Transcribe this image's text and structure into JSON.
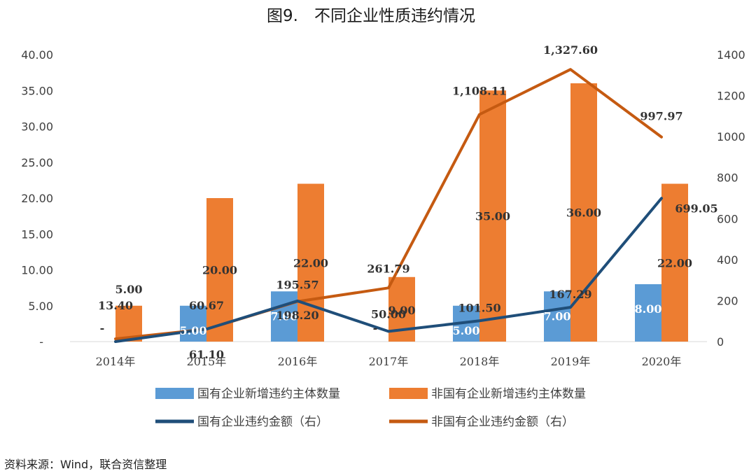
{
  "title": "图9.　不同企业性质违约情况",
  "source": "资料来源：Wind，联合资信整理",
  "colors": {
    "soe_bar": "#5b9bd5",
    "nonsoe_bar": "#ed7d31",
    "soe_line": "#1f4e79",
    "nonsoe_line": "#c55a11"
  },
  "chart_data": {
    "type": "bar",
    "categories": [
      "2014年",
      "2015年",
      "2016年",
      "2017年",
      "2018年",
      "2019年",
      "2020年"
    ],
    "y_left_ticks": [
      "-",
      "5.00",
      "10.00",
      "15.00",
      "20.00",
      "25.00",
      "30.00",
      "35.00",
      "40.00"
    ],
    "y_right_ticks": [
      "0",
      "200",
      "400",
      "600",
      "800",
      "1000",
      "1200",
      "1400"
    ],
    "ylim_left": [
      0,
      40
    ],
    "ylim_right": [
      0,
      1400
    ],
    "legend_position": "bottom",
    "grid": false,
    "series": [
      {
        "name": "国有企业新增违约主体数量",
        "type": "bar",
        "axis": "left",
        "values": [
          0,
          5,
          7,
          0,
          5,
          7,
          8
        ],
        "labels": [
          "-",
          "5.00",
          "7.00",
          "-",
          "5.00",
          "7.00",
          "8.00"
        ]
      },
      {
        "name": "非国有企业新增违约主体数量",
        "type": "bar",
        "axis": "left",
        "values": [
          5,
          20,
          22,
          9,
          35,
          36,
          22
        ],
        "labels": [
          "5.00",
          "20.00",
          "22.00",
          "9.00",
          "35.00",
          "36.00",
          "22.00"
        ]
      },
      {
        "name": "国有企业违约金额（右）",
        "type": "line",
        "axis": "right",
        "values": [
          0,
          61.1,
          198.2,
          50.0,
          101.5,
          167.29,
          699.05
        ],
        "labels": [
          "",
          "61.10",
          "198.20",
          "50.00",
          "101.50",
          "167.29",
          "699.05"
        ]
      },
      {
        "name": "非国有企业违约金额（右）",
        "type": "line",
        "axis": "right",
        "values": [
          13.4,
          60.67,
          195.57,
          261.79,
          1108.11,
          1327.6,
          997.97
        ],
        "labels": [
          "13.40",
          "60.67",
          "195.57",
          "261.79",
          "1,108.11",
          "1,327.60",
          "997.97"
        ]
      }
    ]
  }
}
